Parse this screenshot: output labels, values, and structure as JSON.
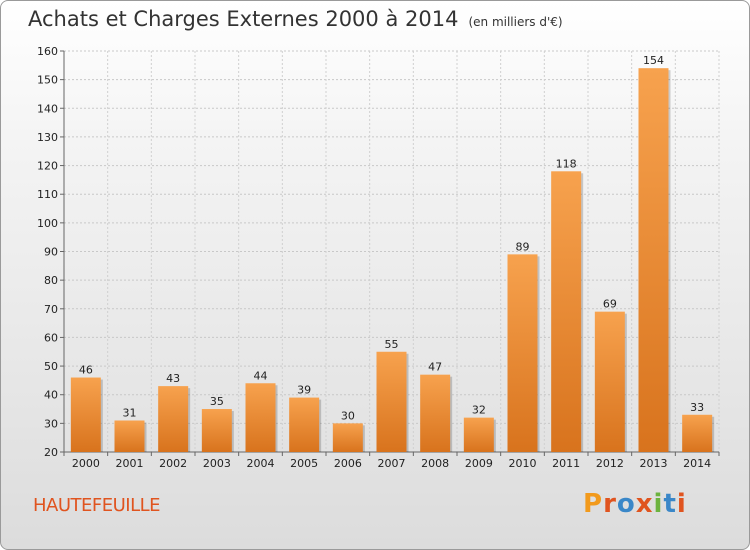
{
  "chart_data": {
    "type": "bar",
    "title": "Achats et Charges Externes 2000 à 2014",
    "subtitle": "(en milliers d'€)",
    "categories": [
      "2000",
      "2001",
      "2002",
      "2003",
      "2004",
      "2005",
      "2006",
      "2007",
      "2008",
      "2009",
      "2010",
      "2011",
      "2012",
      "2013",
      "2014"
    ],
    "values": [
      46,
      31,
      43,
      35,
      44,
      39,
      30,
      55,
      47,
      32,
      89,
      118,
      69,
      154,
      33
    ],
    "ylim": [
      20,
      160
    ],
    "yticks": [
      20,
      30,
      40,
      50,
      60,
      70,
      80,
      90,
      100,
      110,
      120,
      130,
      140,
      150,
      160
    ],
    "grid": true,
    "bar_color": "#f0923a"
  },
  "footer": {
    "city": "HAUTEFEUILLE",
    "logo": "Proxiti"
  },
  "logo_colors": [
    "#f29a1c",
    "#e0541f",
    "#3a87c8",
    "#e0541f",
    "#6cb33f",
    "#3a87c8",
    "#e0541f"
  ]
}
